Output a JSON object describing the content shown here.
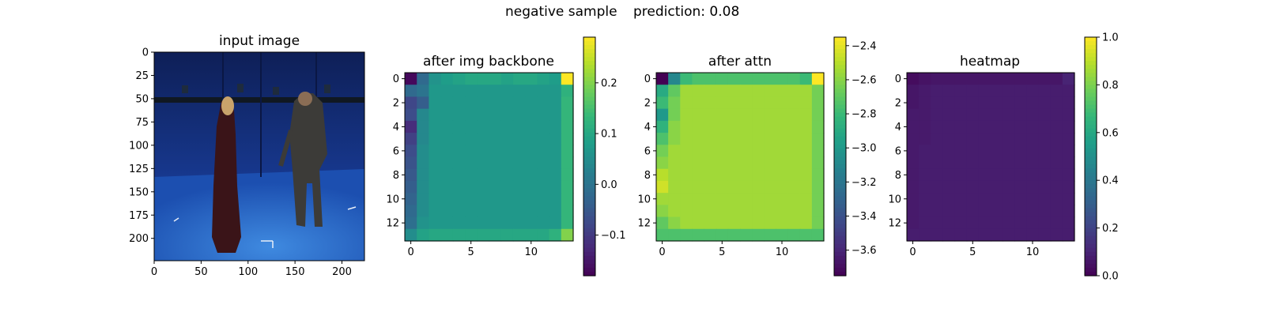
{
  "figure": {
    "suptitle_left": "negative sample",
    "suptitle_right": "prediction: 0.08"
  },
  "chart_data": [
    {
      "type": "image",
      "title": "input image",
      "xticks": [
        0,
        50,
        100,
        150,
        200
      ],
      "yticks": [
        0,
        25,
        50,
        75,
        100,
        125,
        150,
        175,
        200
      ],
      "xlim": [
        0,
        224
      ],
      "ylim": [
        224,
        0
      ],
      "colorbar": false
    },
    {
      "type": "heatmap",
      "title": "after img backbone",
      "grid_size": 14,
      "xticks": [
        0,
        5,
        10
      ],
      "yticks": [
        0,
        2,
        4,
        6,
        8,
        10,
        12
      ],
      "colormap": "viridis",
      "colorbar": {
        "vmin": -0.18,
        "vmax": 0.29,
        "ticks": [
          -0.1,
          0.0,
          0.1,
          0.2
        ],
        "ticklabels": [
          "−0.1",
          "0.0",
          "0.1",
          "0.2"
        ]
      },
      "values": {
        "interior": 0.07,
        "corners": {
          "top_left": -0.17,
          "top_right": 0.29,
          "bottom_left": 0.05,
          "bottom_right": 0.2
        },
        "top_row": [
          -0.17,
          -0.02,
          0.06,
          0.08,
          0.09,
          0.1,
          0.1,
          0.1,
          0.09,
          0.1,
          0.1,
          0.09,
          0.08,
          0.29
        ],
        "bottom_row": [
          0.05,
          0.09,
          0.1,
          0.1,
          0.1,
          0.1,
          0.1,
          0.1,
          0.1,
          0.1,
          0.1,
          0.1,
          0.12,
          0.2
        ],
        "left_col": [
          -0.17,
          -0.02,
          -0.08,
          -0.07,
          -0.12,
          -0.09,
          -0.07,
          -0.06,
          -0.05,
          -0.04,
          -0.03,
          -0.02,
          -0.01,
          0.05
        ],
        "right_col": [
          0.29,
          0.12,
          0.13,
          0.13,
          0.13,
          0.13,
          0.13,
          0.13,
          0.13,
          0.13,
          0.13,
          0.13,
          0.13,
          0.2
        ],
        "second_col": [
          -0.02,
          0.0,
          -0.04,
          0.04,
          0.04,
          0.04,
          0.05,
          0.05,
          0.05,
          0.05,
          0.05,
          0.05,
          0.06,
          0.09
        ]
      }
    },
    {
      "type": "heatmap",
      "title": "after attn",
      "grid_size": 14,
      "xticks": [
        0,
        5,
        10
      ],
      "yticks": [
        0,
        2,
        4,
        6,
        8,
        10,
        12
      ],
      "colormap": "viridis",
      "colorbar": {
        "vmin": -3.75,
        "vmax": -2.35,
        "ticks": [
          -3.6,
          -3.4,
          -3.2,
          -3.0,
          -2.8,
          -2.6,
          -2.4
        ],
        "ticklabels": [
          "−3.6",
          "−3.4",
          "−3.2",
          "−3.0",
          "−2.8",
          "−2.6",
          "−2.4"
        ]
      },
      "values": {
        "interior": -2.55,
        "corners": {
          "top_left": -3.75,
          "top_right": -2.35,
          "bottom_left": -2.75,
          "bottom_right": -2.75
        },
        "top_row": [
          -3.75,
          -3.1,
          -2.8,
          -2.75,
          -2.75,
          -2.75,
          -2.75,
          -2.75,
          -2.75,
          -2.75,
          -2.75,
          -2.75,
          -2.8,
          -2.35
        ],
        "bottom_row": [
          -2.75,
          -2.75,
          -2.75,
          -2.75,
          -2.75,
          -2.75,
          -2.75,
          -2.75,
          -2.75,
          -2.75,
          -2.75,
          -2.75,
          -2.75,
          -2.75
        ],
        "left_col": [
          -3.75,
          -2.9,
          -2.8,
          -3.0,
          -2.85,
          -2.75,
          -2.65,
          -2.6,
          -2.5,
          -2.45,
          -2.55,
          -2.6,
          -2.7,
          -2.75
        ],
        "right_col": [
          -2.35,
          -2.65,
          -2.65,
          -2.65,
          -2.65,
          -2.65,
          -2.65,
          -2.65,
          -2.65,
          -2.65,
          -2.65,
          -2.65,
          -2.65,
          -2.75
        ],
        "second_col": [
          -3.1,
          -2.7,
          -2.65,
          -2.65,
          -2.6,
          -2.6,
          -2.55,
          -2.55,
          -2.55,
          -2.55,
          -2.55,
          -2.55,
          -2.6,
          -2.75
        ]
      }
    },
    {
      "type": "heatmap",
      "title": "heatmap",
      "grid_size": 14,
      "xticks": [
        0,
        5,
        10
      ],
      "yticks": [
        0,
        2,
        4,
        6,
        8,
        10,
        12
      ],
      "colormap": "viridis",
      "colorbar": {
        "vmin": 0.0,
        "vmax": 1.0,
        "ticks": [
          0.0,
          0.2,
          0.4,
          0.6,
          0.8,
          1.0
        ],
        "ticklabels": [
          "0.0",
          "0.2",
          "0.4",
          "0.6",
          "0.8",
          "1.0"
        ]
      },
      "values": {
        "interior": 0.08,
        "corners": {
          "top_left": 0.03,
          "top_right": 0.1,
          "bottom_left": 0.08,
          "bottom_right": 0.08
        },
        "top_row": [
          0.03,
          0.05,
          0.06,
          0.06,
          0.06,
          0.06,
          0.06,
          0.06,
          0.06,
          0.06,
          0.06,
          0.06,
          0.06,
          0.1
        ],
        "bottom_row": [
          0.08,
          0.08,
          0.08,
          0.08,
          0.08,
          0.08,
          0.08,
          0.08,
          0.08,
          0.08,
          0.08,
          0.08,
          0.08,
          0.08
        ],
        "left_col": [
          0.03,
          0.06,
          0.06,
          0.07,
          0.07,
          0.07,
          0.07,
          0.07,
          0.07,
          0.07,
          0.07,
          0.07,
          0.07,
          0.08
        ],
        "right_col": [
          0.1,
          0.08,
          0.08,
          0.08,
          0.08,
          0.08,
          0.08,
          0.08,
          0.08,
          0.08,
          0.08,
          0.08,
          0.08,
          0.08
        ],
        "second_col": [
          0.05,
          0.07,
          0.07,
          0.07,
          0.07,
          0.07,
          0.08,
          0.08,
          0.08,
          0.08,
          0.08,
          0.08,
          0.08,
          0.08
        ]
      }
    }
  ]
}
